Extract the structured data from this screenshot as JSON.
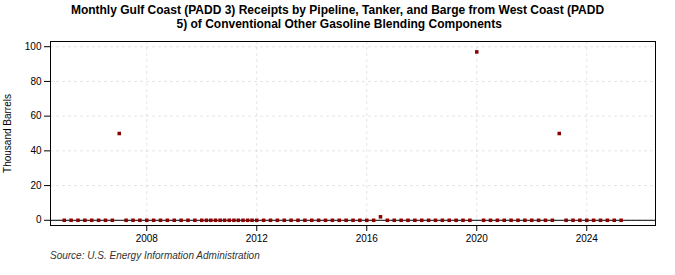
{
  "chart_data": {
    "type": "scatter",
    "title": "Monthly Gulf Coast (PADD 3) Receipts by Pipeline, Tanker, and Barge from West Coast (PADD\n 5) of Conventional Other Gasoline Blending Components",
    "ylabel": "Thousand Barrels",
    "caption": "Source: U.S. Energy Information Administration",
    "color": "#8b0000",
    "marker": "square",
    "grid": true,
    "hline": {
      "y": 0,
      "color": "#000000"
    },
    "xlim": [
      2004.5,
      2026.5
    ],
    "xticks": [
      2008,
      2012,
      2016,
      2020,
      2024
    ],
    "ylim": [
      -3,
      103
    ],
    "yticks": [
      0,
      20,
      40,
      60,
      80,
      100
    ],
    "x": [
      2005.0,
      2005.25,
      2005.5,
      2005.75,
      2006.0,
      2006.25,
      2006.5,
      2006.75,
      2007.0,
      2007.25,
      2007.5,
      2007.75,
      2008.0,
      2008.25,
      2008.5,
      2008.75,
      2009.0,
      2009.25,
      2009.5,
      2009.75,
      2010.0,
      2010.17,
      2010.33,
      2010.5,
      2010.67,
      2010.83,
      2011.0,
      2011.17,
      2011.33,
      2011.5,
      2011.67,
      2011.83,
      2012.0,
      2012.25,
      2012.5,
      2012.75,
      2013.0,
      2013.25,
      2013.5,
      2013.75,
      2014.0,
      2014.25,
      2014.5,
      2014.75,
      2015.0,
      2015.25,
      2015.5,
      2015.75,
      2016.0,
      2016.25,
      2016.5,
      2016.75,
      2017.0,
      2017.25,
      2017.5,
      2017.75,
      2018.0,
      2018.25,
      2018.5,
      2018.75,
      2019.0,
      2019.25,
      2019.5,
      2019.75,
      2020.0,
      2020.25,
      2020.5,
      2020.75,
      2021.0,
      2021.25,
      2021.5,
      2021.75,
      2022.0,
      2022.25,
      2022.5,
      2022.75,
      2023.0,
      2023.25,
      2023.5,
      2023.75,
      2024.0,
      2024.25,
      2024.5,
      2024.75,
      2025.0,
      2025.25
    ],
    "values": [
      0,
      0,
      0,
      0,
      0,
      0,
      0,
      0,
      50,
      0,
      0,
      0,
      0,
      0,
      0,
      0,
      0,
      0,
      0,
      0,
      0,
      0,
      0,
      0,
      0,
      0,
      0,
      0,
      0,
      0,
      0,
      0,
      0,
      0,
      0,
      0,
      0,
      0,
      0,
      0,
      0,
      0,
      0,
      0,
      0,
      0,
      0,
      0,
      0,
      0,
      2,
      0,
      0,
      0,
      0,
      0,
      0,
      0,
      0,
      0,
      0,
      0,
      0,
      0,
      97,
      0,
      0,
      0,
      0,
      0,
      0,
      0,
      0,
      0,
      0,
      0,
      50,
      0,
      0,
      0,
      0,
      0,
      0,
      0,
      0,
      0
    ]
  }
}
